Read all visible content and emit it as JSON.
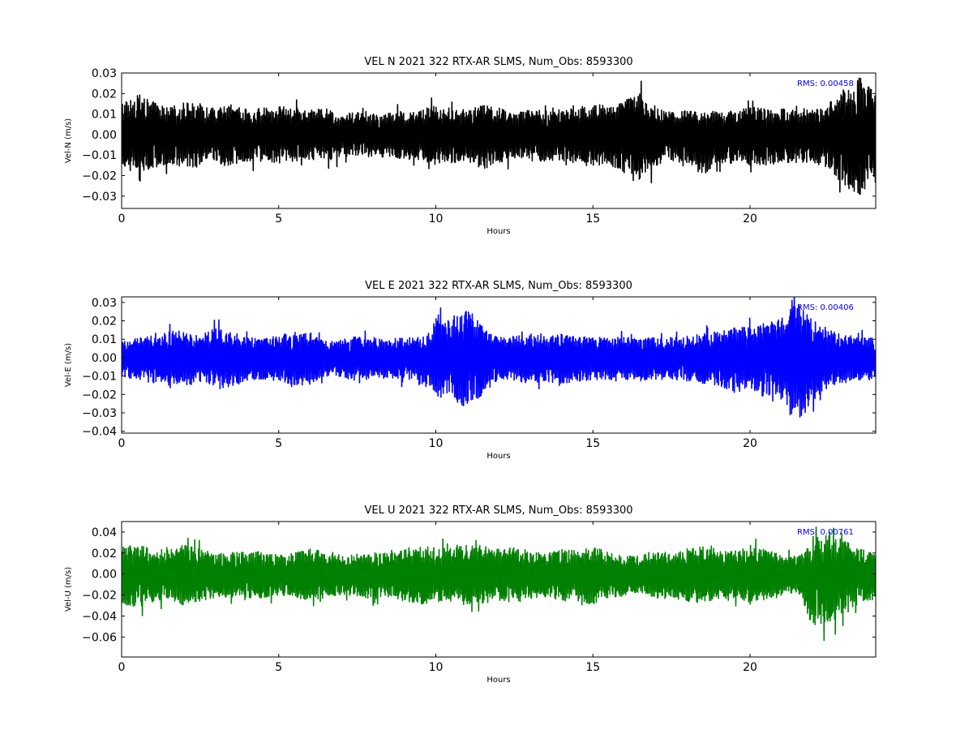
{
  "chart_data": [
    {
      "type": "line",
      "title": "VEL N 2021 322 RTX-AR  SLMS, Num_Obs: 8593300",
      "xlabel": "Hours",
      "ylabel": "Vel-N (m/s)",
      "xlim": [
        0,
        24
      ],
      "ylim": [
        -0.036,
        0.03
      ],
      "xticks": [
        "0",
        "5",
        "10",
        "15",
        "20"
      ],
      "yticks": [
        "0.03",
        "0.02",
        "0.01",
        "0.00",
        "−0.01",
        "−0.02",
        "−0.03"
      ],
      "annotation": "RMS:  0.00458",
      "color": "#000000",
      "grid": false,
      "series": [
        {
          "x": [
            0,
            0.5,
            1,
            1.5,
            2,
            2.5,
            3,
            3.5,
            4,
            4.5,
            5,
            5.5,
            6,
            6.5,
            7,
            7.5,
            8,
            8.5,
            9,
            9.5,
            10,
            10.5,
            11,
            11.5,
            12,
            12.5,
            13,
            13.5,
            14,
            14.5,
            15,
            15.5,
            16,
            16.5,
            17,
            17.5,
            18,
            18.5,
            19,
            19.5,
            20,
            20.5,
            21,
            21.5,
            22,
            22.5,
            23,
            23.5,
            24
          ],
          "upper": [
            0.016,
            0.019,
            0.016,
            0.013,
            0.016,
            0.015,
            0.013,
            0.015,
            0.012,
            0.013,
            0.014,
            0.013,
            0.012,
            0.013,
            0.01,
            0.011,
            0.01,
            0.011,
            0.012,
            0.012,
            0.014,
            0.013,
            0.012,
            0.015,
            0.013,
            0.011,
            0.012,
            0.012,
            0.012,
            0.013,
            0.015,
            0.014,
            0.017,
            0.02,
            0.014,
            0.011,
            0.012,
            0.012,
            0.011,
            0.013,
            0.014,
            0.013,
            0.013,
            0.012,
            0.012,
            0.015,
            0.024,
            0.028,
            0.022
          ],
          "lower": [
            -0.016,
            -0.019,
            -0.017,
            -0.014,
            -0.016,
            -0.016,
            -0.014,
            -0.016,
            -0.013,
            -0.013,
            -0.014,
            -0.013,
            -0.012,
            -0.013,
            -0.011,
            -0.011,
            -0.011,
            -0.011,
            -0.012,
            -0.013,
            -0.015,
            -0.014,
            -0.013,
            -0.017,
            -0.014,
            -0.012,
            -0.013,
            -0.013,
            -0.013,
            -0.014,
            -0.016,
            -0.015,
            -0.019,
            -0.022,
            -0.016,
            -0.013,
            -0.014,
            -0.02,
            -0.014,
            -0.014,
            -0.015,
            -0.015,
            -0.014,
            -0.014,
            -0.014,
            -0.016,
            -0.026,
            -0.031,
            -0.024
          ]
        }
      ]
    },
    {
      "type": "line",
      "title": "VEL E 2021 322 RTX-AR  SLMS, Num_Obs: 8593300",
      "xlabel": "Hours",
      "ylabel": "Vel-E (m/s)",
      "xlim": [
        0,
        24
      ],
      "ylim": [
        -0.041,
        0.033
      ],
      "xticks": [
        "0",
        "5",
        "10",
        "15",
        "20"
      ],
      "yticks": [
        "0.03",
        "0.02",
        "0.01",
        "0.00",
        "−0.01",
        "−0.02",
        "−0.03",
        "−0.04"
      ],
      "annotation": "RMS:  0.00406",
      "color": "#0000ff",
      "grid": false,
      "series": [
        {
          "x": [
            0,
            0.5,
            1,
            1.5,
            2,
            2.5,
            3,
            3.5,
            4,
            4.5,
            5,
            5.5,
            6,
            6.5,
            7,
            7.5,
            8,
            8.5,
            9,
            9.5,
            10,
            10.5,
            11,
            11.5,
            12,
            12.5,
            13,
            13.5,
            14,
            14.5,
            15,
            15.5,
            16,
            16.5,
            17,
            17.5,
            18,
            18.5,
            19,
            19.5,
            20,
            20.5,
            21,
            21.5,
            22,
            22.5,
            23,
            23.5,
            24
          ],
          "upper": [
            0.01,
            0.011,
            0.012,
            0.014,
            0.015,
            0.012,
            0.016,
            0.016,
            0.011,
            0.011,
            0.012,
            0.014,
            0.014,
            0.009,
            0.01,
            0.012,
            0.011,
            0.01,
            0.011,
            0.011,
            0.02,
            0.021,
            0.027,
            0.018,
            0.011,
            0.012,
            0.013,
            0.012,
            0.013,
            0.012,
            0.011,
            0.011,
            0.011,
            0.011,
            0.011,
            0.011,
            0.012,
            0.013,
            0.015,
            0.017,
            0.016,
            0.018,
            0.022,
            0.03,
            0.022,
            0.015,
            0.012,
            0.011,
            0.012
          ],
          "lower": [
            -0.011,
            -0.012,
            -0.014,
            -0.015,
            -0.017,
            -0.013,
            -0.017,
            -0.017,
            -0.012,
            -0.012,
            -0.013,
            -0.015,
            -0.015,
            -0.01,
            -0.011,
            -0.013,
            -0.012,
            -0.011,
            -0.012,
            -0.012,
            -0.022,
            -0.023,
            -0.028,
            -0.02,
            -0.012,
            -0.013,
            -0.014,
            -0.013,
            -0.014,
            -0.013,
            -0.012,
            -0.012,
            -0.012,
            -0.012,
            -0.012,
            -0.012,
            -0.013,
            -0.014,
            -0.016,
            -0.019,
            -0.017,
            -0.02,
            -0.024,
            -0.037,
            -0.024,
            -0.016,
            -0.013,
            -0.012,
            -0.013
          ]
        }
      ]
    },
    {
      "type": "line",
      "title": "VEL U 2021 322 RTX-AR  SLMS, Num_Obs: 8593300",
      "xlabel": "Hours",
      "ylabel": "Vel-U (m/s)",
      "xlim": [
        0,
        24
      ],
      "ylim": [
        -0.079,
        0.05
      ],
      "xticks": [
        "0",
        "5",
        "10",
        "15",
        "20"
      ],
      "yticks": [
        "0.04",
        "0.02",
        "0.00",
        "−0.02",
        "−0.04",
        "−0.06"
      ],
      "annotation": "RMS:  0.00761",
      "color": "#008000",
      "grid": false,
      "series": [
        {
          "x": [
            0,
            0.5,
            1,
            1.5,
            2,
            2.5,
            3,
            3.5,
            4,
            4.5,
            5,
            5.5,
            6,
            6.5,
            7,
            7.5,
            8,
            8.5,
            9,
            9.5,
            10,
            10.5,
            11,
            11.5,
            12,
            12.5,
            13,
            13.5,
            14,
            14.5,
            15,
            15.5,
            16,
            16.5,
            17,
            17.5,
            18,
            18.5,
            19,
            19.5,
            20,
            20.5,
            21,
            21.5,
            22,
            22.5,
            23,
            23.5,
            24
          ],
          "upper": [
            0.028,
            0.03,
            0.024,
            0.023,
            0.028,
            0.024,
            0.02,
            0.02,
            0.022,
            0.021,
            0.018,
            0.02,
            0.025,
            0.02,
            0.018,
            0.019,
            0.022,
            0.02,
            0.024,
            0.028,
            0.026,
            0.024,
            0.028,
            0.027,
            0.024,
            0.026,
            0.022,
            0.02,
            0.024,
            0.022,
            0.026,
            0.021,
            0.018,
            0.017,
            0.022,
            0.021,
            0.024,
            0.026,
            0.022,
            0.022,
            0.028,
            0.024,
            0.018,
            0.016,
            0.034,
            0.038,
            0.032,
            0.025,
            0.022
          ],
          "lower": [
            -0.03,
            -0.032,
            -0.027,
            -0.025,
            -0.03,
            -0.026,
            -0.022,
            -0.022,
            -0.024,
            -0.023,
            -0.02,
            -0.022,
            -0.027,
            -0.022,
            -0.02,
            -0.021,
            -0.024,
            -0.022,
            -0.026,
            -0.03,
            -0.028,
            -0.026,
            -0.03,
            -0.029,
            -0.026,
            -0.028,
            -0.024,
            -0.022,
            -0.026,
            -0.024,
            -0.03,
            -0.023,
            -0.02,
            -0.019,
            -0.024,
            -0.023,
            -0.026,
            -0.028,
            -0.024,
            -0.024,
            -0.03,
            -0.026,
            -0.02,
            -0.018,
            -0.05,
            -0.046,
            -0.038,
            -0.027,
            -0.024
          ]
        }
      ]
    }
  ]
}
